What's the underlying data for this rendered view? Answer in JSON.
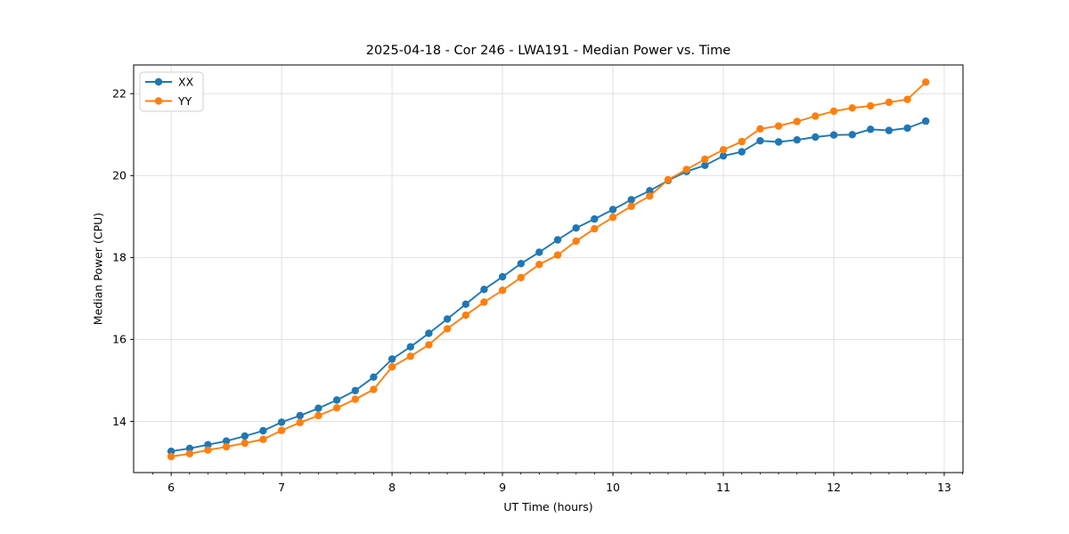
{
  "window": {
    "background": "#ffffff"
  },
  "chart_data": {
    "type": "line",
    "title": "2025-04-18 - Cor 246 - LWA191 - Median Power vs. Time",
    "xlabel": "UT Time (hours)",
    "ylabel": "Median Power (CPU)",
    "xlim": [
      5.66,
      13.17
    ],
    "ylim": [
      12.75,
      22.7
    ],
    "xticks": [
      6,
      7,
      8,
      9,
      10,
      11,
      12,
      13
    ],
    "yticks": [
      14,
      16,
      18,
      20,
      22
    ],
    "x_minor_step": 0.16667,
    "grid": true,
    "legend_position": "upper-left",
    "x": [
      6.0,
      6.167,
      6.333,
      6.5,
      6.667,
      6.833,
      7.0,
      7.167,
      7.333,
      7.5,
      7.667,
      7.833,
      8.0,
      8.167,
      8.333,
      8.5,
      8.667,
      8.833,
      9.0,
      9.167,
      9.333,
      9.5,
      9.667,
      9.833,
      10.0,
      10.167,
      10.333,
      10.5,
      10.667,
      10.833,
      11.0,
      11.167,
      11.333,
      11.5,
      11.667,
      11.833,
      12.0,
      12.167,
      12.333,
      12.5,
      12.667,
      12.833
    ],
    "series": [
      {
        "name": "XX",
        "color": "#1f77b4",
        "marker": "circle",
        "values": [
          13.27,
          13.34,
          13.43,
          13.52,
          13.64,
          13.77,
          13.98,
          14.14,
          14.32,
          14.52,
          14.75,
          15.08,
          15.52,
          15.82,
          16.15,
          16.5,
          16.86,
          17.22,
          17.53,
          17.85,
          18.13,
          18.43,
          18.72,
          18.94,
          19.17,
          19.41,
          19.63,
          19.88,
          20.1,
          20.25,
          20.48,
          20.58,
          20.85,
          20.82,
          20.87,
          20.94,
          20.99,
          21.0,
          21.13,
          21.1,
          21.16,
          21.33
        ]
      },
      {
        "name": "YY",
        "color": "#ff7f0e",
        "marker": "circle",
        "values": [
          13.14,
          13.21,
          13.3,
          13.38,
          13.47,
          13.56,
          13.78,
          13.97,
          14.14,
          14.33,
          14.54,
          14.78,
          15.33,
          15.59,
          15.87,
          16.26,
          16.59,
          16.91,
          17.2,
          17.51,
          17.83,
          18.06,
          18.4,
          18.7,
          18.98,
          19.25,
          19.5,
          19.9,
          20.15,
          20.4,
          20.63,
          20.83,
          21.14,
          21.21,
          21.32,
          21.45,
          21.57,
          21.65,
          21.7,
          21.79,
          21.86,
          22.28
        ]
      }
    ]
  },
  "styles": {
    "background": "#ffffff",
    "grid_color": "#e0e0e0",
    "spine_color": "#000000",
    "tick_color": "#000000",
    "text_color": "#000000",
    "legend_border": "#cccccc",
    "legend_fill": "#ffffff"
  }
}
